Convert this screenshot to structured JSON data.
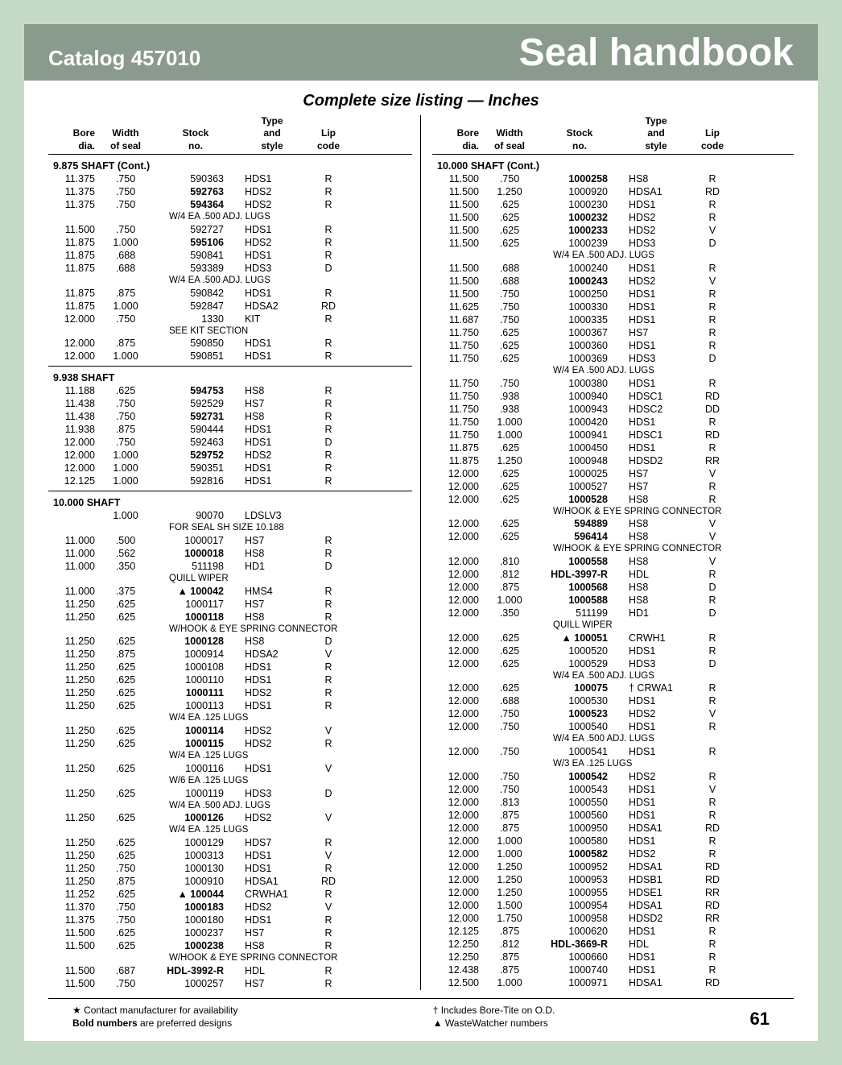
{
  "header": {
    "catalog": "Catalog 457010",
    "title": "Seal handbook"
  },
  "subtitle": "Complete size listing — Inches",
  "columns": {
    "h1a": "Bore",
    "h1b": "dia.",
    "h2a": "Width",
    "h2b": "of seal",
    "h3a": "Stock",
    "h3b": "no.",
    "h4a": "Type",
    "h4b": "and",
    "h4c": "style",
    "h5a": "Lip",
    "h5b": "code"
  },
  "left": [
    {
      "t": "section",
      "v": "9.875 SHAFT (Cont.)"
    },
    {
      "t": "row",
      "b": "11.375",
      "w": ".750",
      "s": "590363",
      "y": "HDS1",
      "l": "R"
    },
    {
      "t": "row",
      "b": "11.375",
      "w": ".750",
      "s": "592763",
      "y": "HDS2",
      "l": "R",
      "bold": true
    },
    {
      "t": "row",
      "b": "11.375",
      "w": ".750",
      "s": "594364",
      "y": "HDS2",
      "l": "R",
      "bold": true
    },
    {
      "t": "note",
      "v": "W/4 EA .500 ADJ. LUGS"
    },
    {
      "t": "row",
      "b": "11.500",
      "w": ".750",
      "s": "592727",
      "y": "HDS1",
      "l": "R"
    },
    {
      "t": "row",
      "b": "11.875",
      "w": "1.000",
      "s": "595106",
      "y": "HDS2",
      "l": "R",
      "bold": true
    },
    {
      "t": "row",
      "b": "11.875",
      "w": ".688",
      "s": "590841",
      "y": "HDS1",
      "l": "R"
    },
    {
      "t": "row",
      "b": "11.875",
      "w": ".688",
      "s": "593389",
      "y": "HDS3",
      "l": "D"
    },
    {
      "t": "note",
      "v": "W/4 EA .500 ADJ. LUGS"
    },
    {
      "t": "row",
      "b": "11.875",
      "w": ".875",
      "s": "590842",
      "y": "HDS1",
      "l": "R"
    },
    {
      "t": "row",
      "b": "11.875",
      "w": "1.000",
      "s": "592847",
      "y": "HDSA2",
      "l": "RD"
    },
    {
      "t": "row",
      "b": "12.000",
      "w": ".750",
      "s": "1330",
      "y": "KIT",
      "l": "R"
    },
    {
      "t": "note",
      "v": "SEE KIT SECTION"
    },
    {
      "t": "row",
      "b": "12.000",
      "w": ".875",
      "s": "590850",
      "y": "HDS1",
      "l": "R"
    },
    {
      "t": "row",
      "b": "12.000",
      "w": "1.000",
      "s": "590851",
      "y": "HDS1",
      "l": "R"
    },
    {
      "t": "hr"
    },
    {
      "t": "section",
      "v": "9.938 SHAFT"
    },
    {
      "t": "row",
      "b": "11.188",
      "w": ".625",
      "s": "594753",
      "y": "HS8",
      "l": "R",
      "bold": true
    },
    {
      "t": "row",
      "b": "11.438",
      "w": ".750",
      "s": "592529",
      "y": "HS7",
      "l": "R"
    },
    {
      "t": "row",
      "b": "11.438",
      "w": ".750",
      "s": "592731",
      "y": "HS8",
      "l": "R",
      "bold": true
    },
    {
      "t": "row",
      "b": "11.938",
      "w": ".875",
      "s": "590444",
      "y": "HDS1",
      "l": "R"
    },
    {
      "t": "row",
      "b": "12.000",
      "w": ".750",
      "s": "592463",
      "y": "HDS1",
      "l": "D"
    },
    {
      "t": "row",
      "b": "12.000",
      "w": "1.000",
      "s": "529752",
      "y": "HDS2",
      "l": "R",
      "bold": true
    },
    {
      "t": "row",
      "b": "12.000",
      "w": "1.000",
      "s": "590351",
      "y": "HDS1",
      "l": "R"
    },
    {
      "t": "row",
      "b": "12.125",
      "w": "1.000",
      "s": "592816",
      "y": "HDS1",
      "l": "R"
    },
    {
      "t": "hr"
    },
    {
      "t": "section",
      "v": "10.000 SHAFT"
    },
    {
      "t": "row",
      "b": "",
      "w": "1.000",
      "s": "90070",
      "y": "LDSLV3",
      "l": ""
    },
    {
      "t": "note",
      "v": "FOR SEAL SH SIZE 10.188"
    },
    {
      "t": "row",
      "b": "11.000",
      "w": ".500",
      "s": "1000017",
      "y": "HS7",
      "l": "R"
    },
    {
      "t": "row",
      "b": "11.000",
      "w": ".562",
      "s": "1000018",
      "y": "HS8",
      "l": "R",
      "bold": true
    },
    {
      "t": "row",
      "b": "11.000",
      "w": ".350",
      "s": "511198",
      "y": "HD1",
      "l": "D"
    },
    {
      "t": "note",
      "v": "QUILL WIPER"
    },
    {
      "t": "row",
      "b": "11.000",
      "w": ".375",
      "s": "▲ 100042",
      "y": "HMS4",
      "l": "R",
      "bold": true
    },
    {
      "t": "row",
      "b": "11.250",
      "w": ".625",
      "s": "1000117",
      "y": "HS7",
      "l": "R"
    },
    {
      "t": "row",
      "b": "11.250",
      "w": ".625",
      "s": "1000118",
      "y": "HS8",
      "l": "R",
      "bold": true
    },
    {
      "t": "note",
      "v": "W/HOOK & EYE SPRING CONNECTOR"
    },
    {
      "t": "row",
      "b": "11.250",
      "w": ".625",
      "s": "1000128",
      "y": "HS8",
      "l": "D",
      "bold": true
    },
    {
      "t": "row",
      "b": "11.250",
      "w": ".875",
      "s": "1000914",
      "y": "HDSA2",
      "l": "V"
    },
    {
      "t": "row",
      "b": "11.250",
      "w": ".625",
      "s": "1000108",
      "y": "HDS1",
      "l": "R"
    },
    {
      "t": "row",
      "b": "11.250",
      "w": ".625",
      "s": "1000110",
      "y": "HDS1",
      "l": "R"
    },
    {
      "t": "row",
      "b": "11.250",
      "w": ".625",
      "s": "1000111",
      "y": "HDS2",
      "l": "R",
      "bold": true
    },
    {
      "t": "row",
      "b": "11.250",
      "w": ".625",
      "s": "1000113",
      "y": "HDS1",
      "l": "R"
    },
    {
      "t": "note",
      "v": "W/4 EA .125 LUGS"
    },
    {
      "t": "row",
      "b": "11.250",
      "w": ".625",
      "s": "1000114",
      "y": "HDS2",
      "l": "V",
      "bold": true
    },
    {
      "t": "row",
      "b": "11.250",
      "w": ".625",
      "s": "1000115",
      "y": "HDS2",
      "l": "R",
      "bold": true
    },
    {
      "t": "note",
      "v": "W/4 EA .125 LUGS"
    },
    {
      "t": "row",
      "b": "11.250",
      "w": ".625",
      "s": "1000116",
      "y": "HDS1",
      "l": "V"
    },
    {
      "t": "note",
      "v": "W/6 EA .125 LUGS"
    },
    {
      "t": "row",
      "b": "11.250",
      "w": ".625",
      "s": "1000119",
      "y": "HDS3",
      "l": "D"
    },
    {
      "t": "note",
      "v": "W/4 EA .500 ADJ. LUGS"
    },
    {
      "t": "row",
      "b": "11.250",
      "w": ".625",
      "s": "1000126",
      "y": "HDS2",
      "l": "V",
      "bold": true
    },
    {
      "t": "note",
      "v": "W/4 EA .125 LUGS"
    },
    {
      "t": "row",
      "b": "11.250",
      "w": ".625",
      "s": "1000129",
      "y": "HDS7",
      "l": "R"
    },
    {
      "t": "row",
      "b": "11.250",
      "w": ".625",
      "s": "1000313",
      "y": "HDS1",
      "l": "V"
    },
    {
      "t": "row",
      "b": "11.250",
      "w": ".750",
      "s": "1000130",
      "y": "HDS1",
      "l": "R"
    },
    {
      "t": "row",
      "b": "11.250",
      "w": ".875",
      "s": "1000910",
      "y": "HDSA1",
      "l": "RD"
    },
    {
      "t": "row",
      "b": "11.252",
      "w": ".625",
      "s": "▲ 100044",
      "y": "CRWHA1",
      "l": "R",
      "bold": true
    },
    {
      "t": "row",
      "b": "11.370",
      "w": ".750",
      "s": "1000183",
      "y": "HDS2",
      "l": "V",
      "bold": true
    },
    {
      "t": "row",
      "b": "11.375",
      "w": ".750",
      "s": "1000180",
      "y": "HDS1",
      "l": "R"
    },
    {
      "t": "row",
      "b": "11.500",
      "w": ".625",
      "s": "1000237",
      "y": "HS7",
      "l": "R"
    },
    {
      "t": "row",
      "b": "11.500",
      "w": ".625",
      "s": "1000238",
      "y": "HS8",
      "l": "R",
      "bold": true
    },
    {
      "t": "note",
      "v": "W/HOOK & EYE SPRING CONNECTOR"
    },
    {
      "t": "row",
      "b": "11.500",
      "w": ".687",
      "s": "HDL-3992-R",
      "y": "HDL",
      "l": "R",
      "bold": true
    },
    {
      "t": "row",
      "b": "11.500",
      "w": ".750",
      "s": "1000257",
      "y": "HS7",
      "l": "R"
    }
  ],
  "right": [
    {
      "t": "section",
      "v": "10.000 SHAFT (Cont.)"
    },
    {
      "t": "row",
      "b": "11.500",
      "w": ".750",
      "s": "1000258",
      "y": "HS8",
      "l": "R",
      "bold": true
    },
    {
      "t": "row",
      "b": "11.500",
      "w": "1.250",
      "s": "1000920",
      "y": "HDSA1",
      "l": "RD"
    },
    {
      "t": "row",
      "b": "11.500",
      "w": ".625",
      "s": "1000230",
      "y": "HDS1",
      "l": "R"
    },
    {
      "t": "row",
      "b": "11.500",
      "w": ".625",
      "s": "1000232",
      "y": "HDS2",
      "l": "R",
      "bold": true
    },
    {
      "t": "row",
      "b": "11.500",
      "w": ".625",
      "s": "1000233",
      "y": "HDS2",
      "l": "V",
      "bold": true
    },
    {
      "t": "row",
      "b": "11.500",
      "w": ".625",
      "s": "1000239",
      "y": "HDS3",
      "l": "D"
    },
    {
      "t": "note",
      "v": "W/4 EA .500 ADJ. LUGS"
    },
    {
      "t": "row",
      "b": "11.500",
      "w": ".688",
      "s": "1000240",
      "y": "HDS1",
      "l": "R"
    },
    {
      "t": "row",
      "b": "11.500",
      "w": ".688",
      "s": "1000243",
      "y": "HDS2",
      "l": "V",
      "bold": true
    },
    {
      "t": "row",
      "b": "11.500",
      "w": ".750",
      "s": "1000250",
      "y": "HDS1",
      "l": "R"
    },
    {
      "t": "row",
      "b": "11.625",
      "w": ".750",
      "s": "1000330",
      "y": "HDS1",
      "l": "R"
    },
    {
      "t": "row",
      "b": "11.687",
      "w": ".750",
      "s": "1000335",
      "y": "HDS1",
      "l": "R"
    },
    {
      "t": "row",
      "b": "11.750",
      "w": ".625",
      "s": "1000367",
      "y": "HS7",
      "l": "R"
    },
    {
      "t": "row",
      "b": "11.750",
      "w": ".625",
      "s": "1000360",
      "y": "HDS1",
      "l": "R"
    },
    {
      "t": "row",
      "b": "11.750",
      "w": ".625",
      "s": "1000369",
      "y": "HDS3",
      "l": "D"
    },
    {
      "t": "note",
      "v": "W/4 EA .500 ADJ. LUGS"
    },
    {
      "t": "row",
      "b": "11.750",
      "w": ".750",
      "s": "1000380",
      "y": "HDS1",
      "l": "R"
    },
    {
      "t": "row",
      "b": "11.750",
      "w": ".938",
      "s": "1000940",
      "y": "HDSC1",
      "l": "RD"
    },
    {
      "t": "row",
      "b": "11.750",
      "w": ".938",
      "s": "1000943",
      "y": "HDSC2",
      "l": "DD"
    },
    {
      "t": "row",
      "b": "11.750",
      "w": "1.000",
      "s": "1000420",
      "y": "HDS1",
      "l": "R"
    },
    {
      "t": "row",
      "b": "11.750",
      "w": "1.000",
      "s": "1000941",
      "y": "HDSC1",
      "l": "RD"
    },
    {
      "t": "row",
      "b": "11.875",
      "w": ".625",
      "s": "1000450",
      "y": "HDS1",
      "l": "R"
    },
    {
      "t": "row",
      "b": "11.875",
      "w": "1.250",
      "s": "1000948",
      "y": "HDSD2",
      "l": "RR"
    },
    {
      "t": "row",
      "b": "12.000",
      "w": ".625",
      "s": "1000025",
      "y": "HS7",
      "l": "V"
    },
    {
      "t": "row",
      "b": "12.000",
      "w": ".625",
      "s": "1000527",
      "y": "HS7",
      "l": "R"
    },
    {
      "t": "row",
      "b": "12.000",
      "w": ".625",
      "s": "1000528",
      "y": "HS8",
      "l": "R",
      "bold": true
    },
    {
      "t": "note",
      "v": "W/HOOK & EYE SPRING CONNECTOR"
    },
    {
      "t": "row",
      "b": "12.000",
      "w": ".625",
      "s": "594889",
      "y": "HS8",
      "l": "V",
      "bold": true
    },
    {
      "t": "row",
      "b": "12.000",
      "w": ".625",
      "s": "596414",
      "y": "HS8",
      "l": "V",
      "bold": true
    },
    {
      "t": "note",
      "v": "W/HOOK & EYE SPRING CONNECTOR"
    },
    {
      "t": "row",
      "b": "12.000",
      "w": ".810",
      "s": "1000558",
      "y": "HS8",
      "l": "V",
      "bold": true
    },
    {
      "t": "row",
      "b": "12.000",
      "w": ".812",
      "s": "HDL-3997-R",
      "y": "HDL",
      "l": "R",
      "bold": true
    },
    {
      "t": "row",
      "b": "12.000",
      "w": ".875",
      "s": "1000568",
      "y": "HS8",
      "l": "D",
      "bold": true
    },
    {
      "t": "row",
      "b": "12.000",
      "w": "1.000",
      "s": "1000588",
      "y": "HS8",
      "l": "R",
      "bold": true
    },
    {
      "t": "row",
      "b": "12.000",
      "w": ".350",
      "s": "511199",
      "y": "HD1",
      "l": "D"
    },
    {
      "t": "note",
      "v": "QUILL WIPER"
    },
    {
      "t": "row",
      "b": "12.000",
      "w": ".625",
      "s": "▲ 100051",
      "y": "CRWH1",
      "l": "R",
      "bold": true
    },
    {
      "t": "row",
      "b": "12.000",
      "w": ".625",
      "s": "1000520",
      "y": "HDS1",
      "l": "R"
    },
    {
      "t": "row",
      "b": "12.000",
      "w": ".625",
      "s": "1000529",
      "y": "HDS3",
      "l": "D"
    },
    {
      "t": "note",
      "v": "W/4 EA .500 ADJ. LUGS"
    },
    {
      "t": "row",
      "b": "12.000",
      "w": ".625",
      "s": "100075",
      "y": "† CRWA1",
      "l": "R",
      "bold": true
    },
    {
      "t": "row",
      "b": "12.000",
      "w": ".688",
      "s": "1000530",
      "y": "HDS1",
      "l": "R"
    },
    {
      "t": "row",
      "b": "12.000",
      "w": ".750",
      "s": "1000523",
      "y": "HDS2",
      "l": "V",
      "bold": true
    },
    {
      "t": "row",
      "b": "12.000",
      "w": ".750",
      "s": "1000540",
      "y": "HDS1",
      "l": "R"
    },
    {
      "t": "note",
      "v": "W/4 EA .500 ADJ. LUGS"
    },
    {
      "t": "row",
      "b": "12.000",
      "w": ".750",
      "s": "1000541",
      "y": "HDS1",
      "l": "R"
    },
    {
      "t": "note",
      "v": "W/3 EA .125 LUGS"
    },
    {
      "t": "row",
      "b": "12.000",
      "w": ".750",
      "s": "1000542",
      "y": "HDS2",
      "l": "R",
      "bold": true
    },
    {
      "t": "row",
      "b": "12.000",
      "w": ".750",
      "s": "1000543",
      "y": "HDS1",
      "l": "V"
    },
    {
      "t": "row",
      "b": "12.000",
      "w": ".813",
      "s": "1000550",
      "y": "HDS1",
      "l": "R"
    },
    {
      "t": "row",
      "b": "12.000",
      "w": ".875",
      "s": "1000560",
      "y": "HDS1",
      "l": "R"
    },
    {
      "t": "row",
      "b": "12.000",
      "w": ".875",
      "s": "1000950",
      "y": "HDSA1",
      "l": "RD"
    },
    {
      "t": "row",
      "b": "12.000",
      "w": "1.000",
      "s": "1000580",
      "y": "HDS1",
      "l": "R"
    },
    {
      "t": "row",
      "b": "12.000",
      "w": "1.000",
      "s": "1000582",
      "y": "HDS2",
      "l": "R",
      "bold": true
    },
    {
      "t": "row",
      "b": "12.000",
      "w": "1.250",
      "s": "1000952",
      "y": "HDSA1",
      "l": "RD"
    },
    {
      "t": "row",
      "b": "12.000",
      "w": "1.250",
      "s": "1000953",
      "y": "HDSB1",
      "l": "RD"
    },
    {
      "t": "row",
      "b": "12.000",
      "w": "1.250",
      "s": "1000955",
      "y": "HDSE1",
      "l": "RR"
    },
    {
      "t": "row",
      "b": "12.000",
      "w": "1.500",
      "s": "1000954",
      "y": "HDSA1",
      "l": "RD"
    },
    {
      "t": "row",
      "b": "12.000",
      "w": "1.750",
      "s": "1000958",
      "y": "HDSD2",
      "l": "RR"
    },
    {
      "t": "row",
      "b": "12.125",
      "w": ".875",
      "s": "1000620",
      "y": "HDS1",
      "l": "R"
    },
    {
      "t": "row",
      "b": "12.250",
      "w": ".812",
      "s": "HDL-3669-R",
      "y": "HDL",
      "l": "R",
      "bold": true
    },
    {
      "t": "row",
      "b": "12.250",
      "w": ".875",
      "s": "1000660",
      "y": "HDS1",
      "l": "R"
    },
    {
      "t": "row",
      "b": "12.438",
      "w": ".875",
      "s": "1000740",
      "y": "HDS1",
      "l": "R"
    },
    {
      "t": "row",
      "b": "12.500",
      "w": "1.000",
      "s": "1000971",
      "y": "HDSA1",
      "l": "RD"
    }
  ],
  "footer": {
    "star": "★ Contact manufacturer for availability",
    "bold": "Bold numbers",
    "boldRest": " are preferred designs",
    "dag": "† Includes Bore-Tite on O.D.",
    "tri": "▲ WasteWatcher numbers",
    "page": "61"
  }
}
